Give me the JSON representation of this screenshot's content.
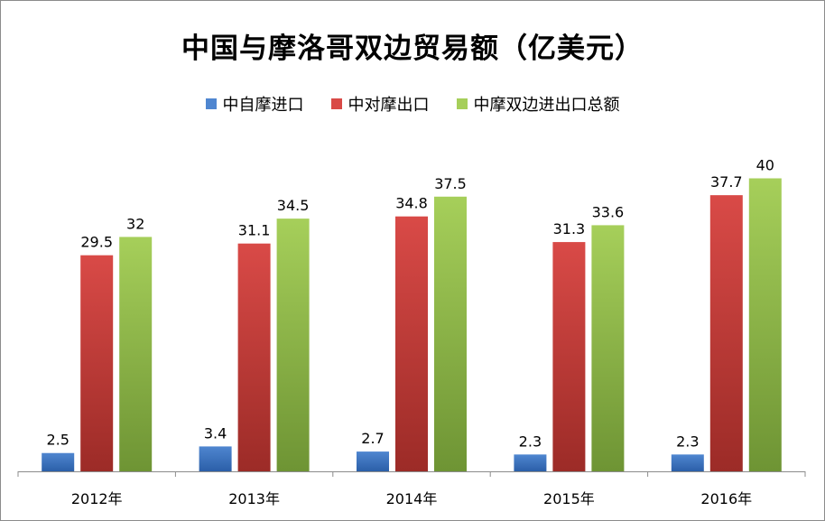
{
  "chart_data": {
    "type": "bar",
    "title": "中国与摩洛哥双边贸易额（亿美元）",
    "categories": [
      "2012年",
      "2013年",
      "2014年",
      "2015年",
      "2016年"
    ],
    "series": [
      {
        "name": "中自摩进口",
        "values": [
          2.5,
          3.4,
          2.7,
          2.3,
          2.3
        ],
        "color_top": "#4f86d0",
        "color_bottom": "#2b5fa8"
      },
      {
        "name": "中对摩出口",
        "values": [
          29.5,
          31.1,
          34.8,
          31.3,
          37.7
        ],
        "color_top": "#d94a47",
        "color_bottom": "#9c2b27"
      },
      {
        "name": "中摩双边进出口总额",
        "values": [
          32,
          34.5,
          37.5,
          33.6,
          40
        ],
        "color_top": "#a6cf5a",
        "color_bottom": "#6e9434"
      }
    ],
    "ylim": [
      0,
      40
    ],
    "grid": false,
    "legend_position": "top"
  }
}
